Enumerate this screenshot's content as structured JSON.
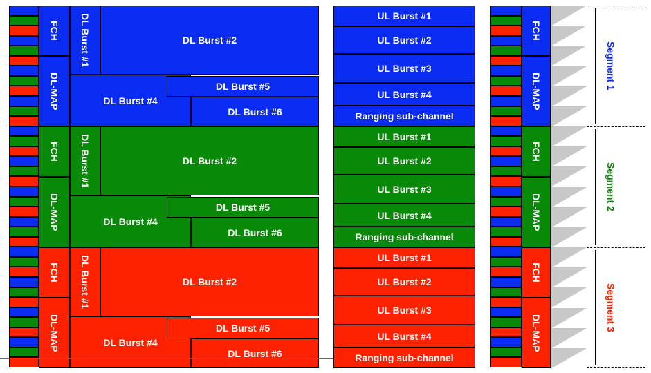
{
  "colors": {
    "seg1": "#0a2bf2",
    "seg2": "#088a08",
    "seg3": "#ff2200",
    "grey": "#c8c8c8"
  },
  "labels": {
    "fch": "FCH",
    "dlmap": "DL-MAP",
    "dl1": "DL Burst #1",
    "dl2": "DL Burst #2",
    "dl4": "DL Burst #4",
    "dl5": "DL Burst #5",
    "dl6": "DL Burst #6",
    "ul1": "UL Burst #1",
    "ul2": "UL Burst #2",
    "ul3": "UL Burst #3",
    "ul4": "UL Burst #4",
    "ranging": "Ranging sub-channel"
  },
  "segments": [
    {
      "label": "Segment 1",
      "color": "#0a2bf2"
    },
    {
      "label": "Segment 2",
      "color": "#088a08"
    },
    {
      "label": "Segment 3",
      "color": "#ff2200"
    }
  ]
}
